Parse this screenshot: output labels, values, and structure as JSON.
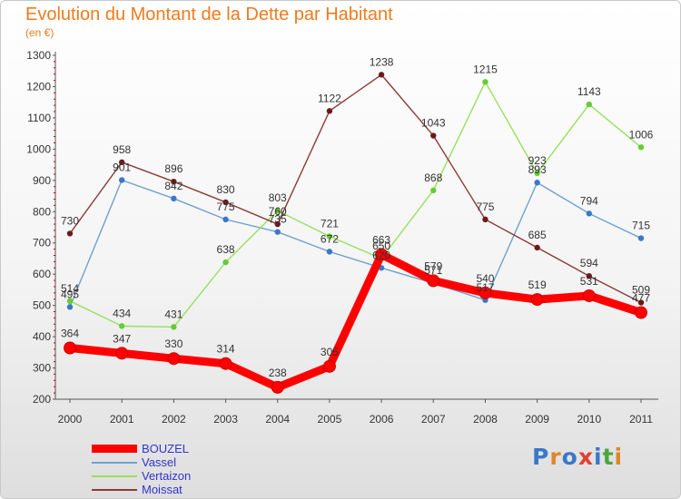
{
  "title": "Evolution du Montant de la Dette par Habitant",
  "subtitle": "(en €)",
  "logo": {
    "text": "Proxiti",
    "colors": [
      "#3a78c8",
      "#e0862a",
      "#3a78c8",
      "#e04030",
      "#3a78c8",
      "#4ca63c",
      "#e0862a"
    ]
  },
  "chart_data": {
    "type": "line",
    "title": "Evolution du Montant de la Dette par Habitant",
    "subtitle": "(en €)",
    "x": [
      "2000",
      "2001",
      "2002",
      "2003",
      "2004",
      "2005",
      "2006",
      "2007",
      "2008",
      "2009",
      "2010",
      "2011"
    ],
    "ylim": [
      200,
      1300
    ],
    "yticks": [
      200,
      300,
      400,
      500,
      600,
      700,
      800,
      900,
      1000,
      1100,
      1200,
      1300
    ],
    "grid": false,
    "legend_position": "bottom-left",
    "series": [
      {
        "name": "BOUZEL",
        "color": "#ff0000",
        "label_color": "#3333cc",
        "marker": "#cc0000",
        "width": "thick",
        "values": [
          364,
          347,
          330,
          314,
          238,
          305,
          663,
          579,
          540,
          519,
          531,
          477
        ]
      },
      {
        "name": "Vassel",
        "color": "#6fa0d0",
        "label_color": "#3333cc",
        "marker": "#3a78c8",
        "width": "thin",
        "values": [
          495,
          901,
          842,
          775,
          735,
          672,
          620,
          571,
          517,
          893,
          794,
          715
        ]
      },
      {
        "name": "Vertaizon",
        "color": "#99e060",
        "label_color": "#3333cc",
        "marker": "#66cc33",
        "width": "thin",
        "values": [
          514,
          434,
          431,
          638,
          803,
          721,
          650,
          868,
          1215,
          923,
          1143,
          1006
        ]
      },
      {
        "name": "Moissat",
        "color": "#8b3a3a",
        "label_color": "#3333cc",
        "marker": "#6b1a1a",
        "width": "thin",
        "values": [
          730,
          958,
          896,
          830,
          760,
          1122,
          1238,
          1043,
          775,
          685,
          594,
          509
        ]
      }
    ]
  }
}
